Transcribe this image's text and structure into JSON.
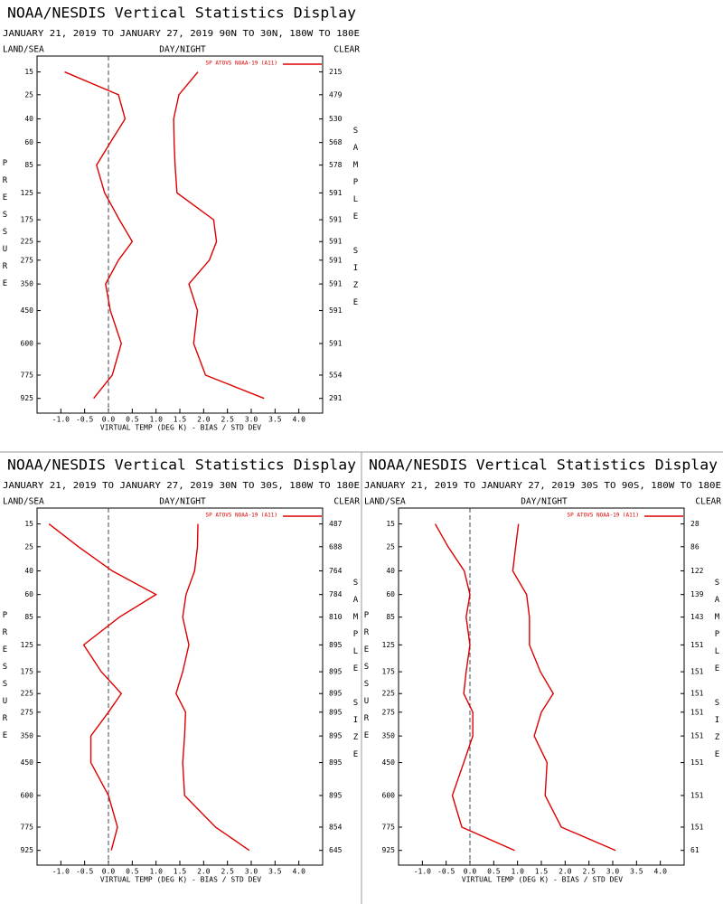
{
  "chart_data": [
    {
      "type": "line",
      "title": "NOAA/NESDIS Vertical Statistics Display",
      "subtitle": "JANUARY 21, 2019 TO JANUARY 27, 2019  90N TO 30N, 180W TO 180E",
      "header_left": "LAND/SEA",
      "header_center": "DAY/NIGHT",
      "header_right": "CLEAR",
      "ylabel": "PRESSURE",
      "y2label": "SAMPLE SIZE",
      "xlabel": "VIRTUAL TEMP (DEG K) - BIAS / STD DEV",
      "y": [
        15,
        25,
        40,
        60,
        85,
        125,
        175,
        225,
        275,
        350,
        450,
        600,
        775,
        925
      ],
      "sample_size": [
        215,
        479,
        530,
        568,
        578,
        591,
        591,
        591,
        591,
        591,
        591,
        591,
        554,
        291
      ],
      "series": [
        {
          "name": "SP ATOVS NOAA-19 (A11)",
          "color": "#dd0000",
          "bias": [
            -0.92,
            0.21,
            0.35,
            0.04,
            -0.25,
            -0.08,
            0.23,
            0.5,
            0.21,
            -0.06,
            0.04,
            0.27,
            0.08,
            -0.31
          ],
          "std_dev": [
            1.88,
            1.48,
            1.37,
            1.38,
            1.4,
            1.44,
            2.21,
            2.27,
            2.12,
            1.69,
            1.87,
            1.79,
            2.04,
            3.27
          ]
        }
      ],
      "xlim": [
        -1.5,
        4.5
      ],
      "xticks": [
        {
          "value": -1,
          "label": "-1.0"
        },
        -0.5,
        {
          "value": 0,
          "label": "0.0"
        },
        0.5,
        {
          "value": 1,
          "label": "1.0"
        },
        1.5,
        {
          "value": 2,
          "label": "2.0"
        },
        2.5,
        {
          "value": 3,
          "label": "3.0"
        },
        3.5,
        {
          "value": 4,
          "label": "4.0"
        }
      ],
      "ylim": [
        10,
        1030
      ],
      "yscale": "power"
    },
    {
      "type": "line",
      "title": "NOAA/NESDIS Vertical Statistics Display",
      "subtitle": "JANUARY 21, 2019 TO JANUARY 27, 2019  30N TO 30S, 180W TO 180E",
      "header_left": "LAND/SEA",
      "header_center": "DAY/NIGHT",
      "header_right": "CLEAR",
      "ylabel": "PRESSURE",
      "y2label": "SAMPLE SIZE",
      "xlabel": "VIRTUAL TEMP (DEG K) - BIAS / STD DEV",
      "y": [
        15,
        25,
        40,
        60,
        85,
        125,
        175,
        225,
        275,
        350,
        450,
        600,
        775,
        925
      ],
      "sample_size": [
        487,
        688,
        764,
        784,
        810,
        895,
        895,
        895,
        895,
        895,
        895,
        895,
        854,
        645
      ],
      "series": [
        {
          "name": "SP ATOVS NOAA-19 (A11)",
          "color": "#dd0000",
          "bias": [
            -1.25,
            -0.63,
            0.08,
            1.0,
            0.23,
            -0.52,
            -0.15,
            0.27,
            0.0,
            -0.37,
            -0.37,
            0.0,
            0.19,
            0.06
          ],
          "std_dev": [
            1.88,
            1.87,
            1.81,
            1.63,
            1.56,
            1.69,
            1.56,
            1.42,
            1.62,
            1.6,
            1.56,
            1.6,
            2.25,
            2.96
          ]
        }
      ],
      "xlim": [
        -1.5,
        4.5
      ],
      "xticks": [
        {
          "value": -1,
          "label": "-1.0"
        },
        -0.5,
        {
          "value": 0,
          "label": "0.0"
        },
        0.5,
        {
          "value": 1,
          "label": "1.0"
        },
        1.5,
        {
          "value": 2,
          "label": "2.0"
        },
        2.5,
        {
          "value": 3,
          "label": "3.0"
        },
        3.5,
        {
          "value": 4,
          "label": "4.0"
        }
      ],
      "ylim": [
        10,
        1030
      ],
      "yscale": "power"
    },
    {
      "type": "line",
      "title": "NOAA/NESDIS Vertical Statistics Display",
      "subtitle": "JANUARY 21, 2019 TO JANUARY 27, 2019  30S TO 90S, 180W TO 180E",
      "header_left": "LAND/SEA",
      "header_center": "DAY/NIGHT",
      "header_right": "CLEAR",
      "ylabel": "PRESSURE",
      "y2label": "SAMPLE SIZE",
      "xlabel": "VIRTUAL TEMP (DEG K) - BIAS / STD DEV",
      "y": [
        15,
        25,
        40,
        60,
        85,
        125,
        175,
        225,
        275,
        350,
        450,
        600,
        775,
        925
      ],
      "sample_size": [
        28,
        86,
        122,
        139,
        143,
        151,
        151,
        151,
        151,
        151,
        151,
        151,
        151,
        61
      ],
      "series": [
        {
          "name": "SP ATOVS NOAA-19 (A11)",
          "color": "#dd0000",
          "bias": [
            -0.73,
            -0.46,
            -0.12,
            0.0,
            -0.08,
            0.0,
            -0.08,
            -0.13,
            0.06,
            0.06,
            -0.13,
            -0.37,
            -0.17,
            0.94
          ],
          "std_dev": [
            1.02,
            0.96,
            0.9,
            1.19,
            1.25,
            1.25,
            1.48,
            1.75,
            1.5,
            1.35,
            1.62,
            1.58,
            1.92,
            3.06
          ]
        }
      ],
      "xlim": [
        -1.5,
        4.5
      ],
      "xticks": [
        {
          "value": -1,
          "label": "-1.0"
        },
        -0.5,
        {
          "value": 0,
          "label": "0.0"
        },
        0.5,
        {
          "value": 1,
          "label": "1.0"
        },
        1.5,
        {
          "value": 2,
          "label": "2.0"
        },
        2.5,
        {
          "value": 3,
          "label": "3.0"
        },
        3.5,
        {
          "value": 4,
          "label": "4.0"
        }
      ],
      "ylim": [
        10,
        1030
      ],
      "yscale": "power"
    }
  ]
}
